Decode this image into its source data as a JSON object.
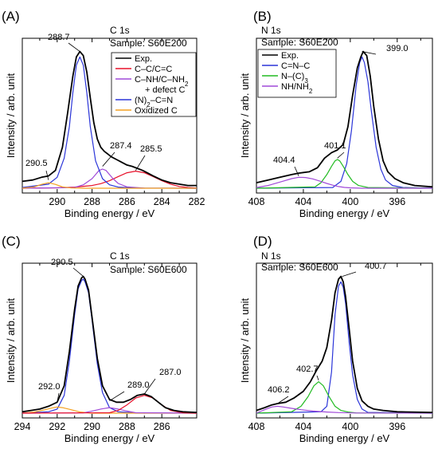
{
  "chart_data": [
    {
      "type": "line",
      "panel_label": "(A)",
      "title": "C 1s",
      "subtitle": "Sample: S60E200",
      "xlabel": "Binding energy / eV",
      "ylabel": "Intensity / arb. unit",
      "xlim": [
        292,
        282
      ],
      "x_reversed": true,
      "xticks": [
        "290",
        "288",
        "286",
        "284",
        "282"
      ],
      "ylim": [
        0,
        1.05
      ],
      "yticks": [],
      "legend_position": "top-right",
      "grid": false,
      "colors": {
        "Exp.": "#000000",
        "C–C/C=C": "#e8102a",
        "C–NH/C–NH2 + defect C": "#a04ad8",
        "(N)2–C=N": "#2b35d9",
        "Oxidized C": "#f4a020"
      },
      "series": [
        {
          "name": "Exp.",
          "color": "#000000",
          "x": [
            292,
            291.4,
            290.9,
            290.5,
            290.1,
            289.7,
            289.4,
            289.1,
            288.9,
            288.7,
            288.5,
            288.3,
            288.1,
            287.9,
            287.7,
            287.5,
            287.3,
            287.1,
            286.9,
            286.6,
            286.3,
            286.0,
            285.7,
            285.4,
            285.1,
            284.8,
            284.5,
            284.0,
            283.5,
            283.0,
            282.5,
            282.0
          ],
          "y": [
            0.05,
            0.06,
            0.08,
            0.09,
            0.13,
            0.3,
            0.55,
            0.82,
            0.96,
            1.0,
            0.97,
            0.85,
            0.66,
            0.48,
            0.36,
            0.3,
            0.27,
            0.25,
            0.23,
            0.21,
            0.19,
            0.17,
            0.16,
            0.145,
            0.13,
            0.11,
            0.09,
            0.06,
            0.04,
            0.03,
            0.02,
            0.02
          ]
        },
        {
          "name": "C–C/C=C",
          "color": "#e8102a",
          "x": [
            292,
            290,
            289,
            288,
            287.5,
            287,
            286.5,
            286,
            285.5,
            285,
            284.5,
            284,
            283.5,
            283,
            282.5,
            282
          ],
          "y": [
            0.0,
            0.003,
            0.008,
            0.02,
            0.033,
            0.055,
            0.085,
            0.113,
            0.125,
            0.113,
            0.085,
            0.055,
            0.03,
            0.013,
            0.005,
            0.002
          ]
        },
        {
          "name": "C–NH/C–NH2 + defect C",
          "color": "#a04ad8",
          "x": [
            292,
            289,
            288.5,
            288,
            287.8,
            287.6,
            287.4,
            287.2,
            287.0,
            286.8,
            286.5,
            286,
            285,
            282
          ],
          "y": [
            0.0,
            0.005,
            0.025,
            0.07,
            0.1,
            0.13,
            0.14,
            0.13,
            0.1,
            0.07,
            0.035,
            0.01,
            0.001,
            0.0
          ]
        },
        {
          "name": "(N)2–C=N",
          "color": "#2b35d9",
          "x": [
            292,
            290.5,
            290.0,
            289.6,
            289.3,
            289.1,
            288.9,
            288.7,
            288.5,
            288.3,
            288.1,
            287.8,
            287.4,
            287.0,
            286.5,
            285.5,
            282
          ],
          "y": [
            0.005,
            0.03,
            0.08,
            0.22,
            0.45,
            0.7,
            0.9,
            0.96,
            0.9,
            0.7,
            0.45,
            0.2,
            0.07,
            0.025,
            0.008,
            0.001,
            0.0
          ]
        },
        {
          "name": "Oxidized C",
          "color": "#f4a020",
          "x": [
            292,
            291.3,
            290.9,
            290.5,
            290.1,
            289.7,
            289.2,
            288.5,
            282
          ],
          "y": [
            0.0,
            0.01,
            0.028,
            0.04,
            0.028,
            0.01,
            0.002,
            0.0,
            0.0
          ]
        }
      ],
      "annotations": [
        {
          "text": "288.7",
          "x": 288.7,
          "y": 1.0
        },
        {
          "text": "290.5",
          "x": 290.5,
          "y": 0.06
        },
        {
          "text": "287.4",
          "x": 287.4,
          "y": 0.16
        },
        {
          "text": "285.5",
          "x": 285.5,
          "y": 0.13
        }
      ]
    },
    {
      "type": "line",
      "panel_label": "(B)",
      "title": "N 1s",
      "subtitle": "Sample: S60E200",
      "xlabel": "Binding energy / eV",
      "ylabel": "Intensity / arb. unit",
      "xlim": [
        408,
        393
      ],
      "x_reversed": true,
      "xticks": [
        "408",
        "404",
        "400",
        "396"
      ],
      "ylim": [
        0,
        1.05
      ],
      "yticks": [],
      "legend_position": "top-left",
      "grid": false,
      "colors": {
        "Exp.": "#000000",
        "C=N–C": "#2b35d9",
        "N–(C)3": "#22bb22",
        "NH/NH2": "#a04ad8"
      },
      "series": [
        {
          "name": "Exp.",
          "color": "#000000",
          "x": [
            408,
            407,
            406,
            405,
            404.4,
            403.5,
            402.8,
            402.2,
            401.6,
            401.1,
            400.6,
            400.2,
            399.8,
            399.4,
            399.1,
            398.9,
            398.6,
            398.3,
            398.0,
            397.6,
            397.2,
            396.8,
            396.2,
            395.5,
            394.5,
            393.0
          ],
          "y": [
            0.04,
            0.06,
            0.08,
            0.1,
            0.11,
            0.12,
            0.15,
            0.22,
            0.26,
            0.28,
            0.32,
            0.45,
            0.68,
            0.88,
            0.96,
            1.0,
            0.97,
            0.82,
            0.6,
            0.36,
            0.2,
            0.12,
            0.07,
            0.04,
            0.02,
            0.01
          ]
        },
        {
          "name": "C=N–C",
          "color": "#2b35d9",
          "x": [
            408,
            401.5,
            400.8,
            400.3,
            399.9,
            399.5,
            399.2,
            399.0,
            398.8,
            398.5,
            398.2,
            397.8,
            397.4,
            397.0,
            396.4,
            395.5,
            393.0
          ],
          "y": [
            0.0,
            0.005,
            0.05,
            0.18,
            0.42,
            0.75,
            0.92,
            0.96,
            0.92,
            0.78,
            0.56,
            0.3,
            0.14,
            0.06,
            0.02,
            0.005,
            0.0
          ]
        },
        {
          "name": "N–(C)3",
          "color": "#22bb22",
          "x": [
            408,
            403,
            402.5,
            402.0,
            401.6,
            401.3,
            401.1,
            400.9,
            400.6,
            400.2,
            399.8,
            399.3,
            398.5,
            393
          ],
          "y": [
            0.0,
            0.01,
            0.04,
            0.1,
            0.16,
            0.2,
            0.21,
            0.2,
            0.16,
            0.1,
            0.05,
            0.02,
            0.005,
            0.0
          ]
        },
        {
          "name": "NH/NH2",
          "color": "#a04ad8",
          "x": [
            408,
            407,
            406,
            405,
            404.4,
            403.8,
            403.2,
            402.6,
            402.0,
            401.5,
            401.0,
            400.5,
            400,
            399,
            393
          ],
          "y": [
            0.005,
            0.02,
            0.045,
            0.07,
            0.08,
            0.078,
            0.068,
            0.052,
            0.035,
            0.022,
            0.012,
            0.006,
            0.003,
            0.0,
            0.0
          ]
        }
      ],
      "annotations": [
        {
          "text": "399.0",
          "x": 399.0,
          "y": 1.0
        },
        {
          "text": "401.1",
          "x": 401.1,
          "y": 0.22
        },
        {
          "text": "404.4",
          "x": 404.4,
          "y": 0.09
        }
      ]
    },
    {
      "type": "line",
      "panel_label": "(C)",
      "title": "C 1s",
      "subtitle": "Sample: S60E600",
      "xlabel": "Binding energy / eV",
      "ylabel": "Intensity / arb. unit",
      "xlim": [
        294,
        284
      ],
      "x_reversed": true,
      "xticks": [
        "294",
        "292",
        "290",
        "288",
        "286"
      ],
      "ylim": [
        0,
        1.05
      ],
      "yticks": [],
      "grid": false,
      "colors": {
        "Exp.": "#000000",
        "C–C/C=C": "#e8102a",
        "C–NH/C–NH2 + defect C": "#a04ad8",
        "(N)2–C=N": "#2b35d9",
        "Oxidized C": "#f4a020"
      },
      "series": [
        {
          "name": "Exp.",
          "color": "#000000",
          "x": [
            294,
            293.5,
            293,
            292.5,
            292,
            291.6,
            291.3,
            291.0,
            290.8,
            290.6,
            290.5,
            290.4,
            290.2,
            290.0,
            289.7,
            289.4,
            289.0,
            288.6,
            288.2,
            287.8,
            287.4,
            287.0,
            286.6,
            286.2,
            285.8,
            285.3,
            284.8,
            284
          ],
          "y": [
            0.01,
            0.02,
            0.03,
            0.05,
            0.08,
            0.2,
            0.45,
            0.76,
            0.93,
            0.99,
            1.0,
            0.98,
            0.9,
            0.7,
            0.4,
            0.2,
            0.1,
            0.08,
            0.08,
            0.1,
            0.13,
            0.14,
            0.12,
            0.08,
            0.04,
            0.02,
            0.01,
            0.005
          ]
        },
        {
          "name": "(N)2–C=N",
          "color": "#2b35d9",
          "x": [
            294,
            292.5,
            292,
            291.6,
            291.3,
            291.0,
            290.8,
            290.6,
            290.5,
            290.4,
            290.2,
            290.0,
            289.7,
            289.4,
            289.0,
            288.5,
            287.5,
            284
          ],
          "y": [
            0.0,
            0.01,
            0.03,
            0.13,
            0.38,
            0.72,
            0.91,
            0.97,
            0.98,
            0.96,
            0.88,
            0.68,
            0.36,
            0.15,
            0.04,
            0.01,
            0.002,
            0.0
          ]
        },
        {
          "name": "Oxidized C",
          "color": "#f4a020",
          "x": [
            294,
            293.3,
            292.7,
            292.2,
            292.0,
            291.7,
            291.2,
            290.7,
            290.0,
            284
          ],
          "y": [
            0.0,
            0.008,
            0.025,
            0.04,
            0.045,
            0.04,
            0.025,
            0.008,
            0.0,
            0.0
          ]
        },
        {
          "name": "C–NH/C–NH2 + defect C",
          "color": "#a04ad8",
          "x": [
            294,
            290.5,
            290.0,
            289.5,
            289.0,
            288.5,
            288.0,
            287.5,
            284
          ],
          "y": [
            0.0,
            0.002,
            0.015,
            0.03,
            0.04,
            0.03,
            0.015,
            0.003,
            0.0
          ]
        },
        {
          "name": "C–C/C=C",
          "color": "#e8102a",
          "x": [
            294,
            289,
            288.5,
            288.0,
            287.5,
            287.0,
            286.5,
            286.0,
            285.5,
            284.8,
            284
          ],
          "y": [
            0.0,
            0.003,
            0.02,
            0.06,
            0.11,
            0.13,
            0.11,
            0.06,
            0.02,
            0.003,
            0.0
          ]
        }
      ],
      "annotations": [
        {
          "text": "290.5",
          "x": 290.5,
          "y": 1.0
        },
        {
          "text": "292.0",
          "x": 292.0,
          "y": 0.08
        },
        {
          "text": "289.0",
          "x": 289.0,
          "y": 0.09
        },
        {
          "text": "287.0",
          "x": 287.0,
          "y": 0.14
        }
      ]
    },
    {
      "type": "line",
      "panel_label": "(D)",
      "title": "N 1s",
      "subtitle": "Sample: S60E600",
      "xlabel": "Binding energy / eV",
      "ylabel": "Intensity / arb. unit",
      "xlim": [
        408,
        393
      ],
      "x_reversed": true,
      "xticks": [
        "408",
        "404",
        "400",
        "396"
      ],
      "ylim": [
        0,
        1.05
      ],
      "yticks": [],
      "grid": false,
      "colors": {
        "Exp.": "#000000",
        "C=N–C": "#2b35d9",
        "N–(C)3": "#22bb22",
        "NH/NH2": "#a04ad8"
      },
      "series": [
        {
          "name": "Exp.",
          "color": "#000000",
          "x": [
            408,
            407.3,
            406.7,
            406.2,
            405.5,
            404.8,
            404.0,
            403.4,
            402.9,
            402.4,
            402.0,
            401.6,
            401.3,
            401.0,
            400.8,
            400.6,
            400.4,
            400.1,
            399.8,
            399.4,
            399.0,
            398.5,
            398.0,
            397.2,
            396.0,
            393
          ],
          "y": [
            0.02,
            0.04,
            0.06,
            0.07,
            0.08,
            0.11,
            0.16,
            0.23,
            0.31,
            0.38,
            0.48,
            0.68,
            0.88,
            0.98,
            1.0,
            0.96,
            0.85,
            0.62,
            0.38,
            0.18,
            0.09,
            0.05,
            0.03,
            0.02,
            0.01,
            0.005
          ]
        },
        {
          "name": "C=N–C",
          "color": "#2b35d9",
          "x": [
            408,
            402.5,
            402.0,
            401.6,
            401.3,
            401.0,
            400.8,
            400.6,
            400.4,
            400.1,
            399.8,
            399.4,
            399.0,
            398.5,
            393
          ],
          "y": [
            0.0,
            0.01,
            0.05,
            0.3,
            0.72,
            0.93,
            0.96,
            0.92,
            0.8,
            0.52,
            0.28,
            0.1,
            0.03,
            0.005,
            0.0
          ]
        },
        {
          "name": "N–(C)3",
          "color": "#22bb22",
          "x": [
            408,
            405,
            404.2,
            403.6,
            403.1,
            402.7,
            402.3,
            401.8,
            401.3,
            400.8,
            400.2,
            399.5,
            393
          ],
          "y": [
            0.0,
            0.01,
            0.05,
            0.12,
            0.2,
            0.23,
            0.2,
            0.12,
            0.05,
            0.02,
            0.008,
            0.002,
            0.0
          ]
        },
        {
          "name": "NH/NH2",
          "color": "#a04ad8",
          "x": [
            408,
            407.3,
            406.7,
            406.2,
            405.7,
            405.0,
            404.2,
            403.2,
            402,
            401,
            399.5,
            393
          ],
          "y": [
            0.0,
            0.025,
            0.045,
            0.05,
            0.045,
            0.035,
            0.025,
            0.015,
            0.008,
            0.004,
            0.001,
            0.0
          ]
        }
      ],
      "annotations": [
        {
          "text": "400.7",
          "x": 400.7,
          "y": 1.0
        },
        {
          "text": "402.7",
          "x": 402.7,
          "y": 0.24
        },
        {
          "text": "406.2",
          "x": 406.2,
          "y": 0.07
        }
      ]
    }
  ],
  "legends": {
    "A": [
      {
        "text": "Exp.",
        "color": "#000000"
      },
      {
        "text": "C–C/C=C",
        "color": "#e8102a"
      },
      {
        "text": "C–NH/C–NH",
        "sub": "2",
        "color": "#a04ad8"
      },
      {
        "text": "+ defect C",
        "color": null
      },
      {
        "text": "(N)",
        "sub": "2",
        "tail": "–C=N",
        "color": "#2b35d9"
      },
      {
        "text": "Oxidized C",
        "color": "#f4a020"
      }
    ],
    "B": [
      {
        "text": "Exp.",
        "color": "#000000"
      },
      {
        "text": "C=N–C",
        "color": "#2b35d9"
      },
      {
        "text": "N–(C)",
        "sub": "3",
        "color": "#22bb22"
      },
      {
        "text": "NH/NH",
        "sub": "2",
        "color": "#a04ad8"
      }
    ]
  }
}
